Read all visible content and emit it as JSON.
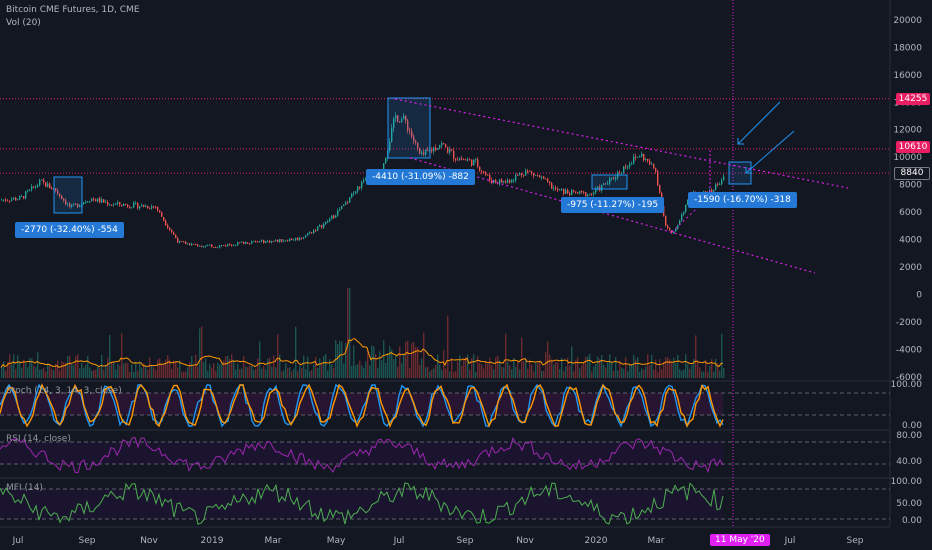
{
  "header": {
    "title": "Bitcoin CME Futures, 1D, CME",
    "volume_label": "Vol (20)"
  },
  "indicators": {
    "stoch": "Stoch (14, 3, 14, 3, close)",
    "rsi": "RSI (14, close)",
    "mfi": "MFI (14)"
  },
  "annotations": [
    {
      "id": "a1",
      "text": "-2770 (-32.40%) -554"
    },
    {
      "id": "a2",
      "text": "-4410 (-31.09%) -882"
    },
    {
      "id": "a3",
      "text": "-975 (-11.27%) -195"
    },
    {
      "id": "a4",
      "text": "-1590 (-16.70%) -318"
    }
  ],
  "price_axis": {
    "ticks": [
      "20000",
      "18000",
      "16000",
      "14000",
      "12000",
      "10000",
      "8000",
      "6000",
      "4000",
      "2000",
      "0",
      "-2000",
      "-4000",
      "-6000"
    ]
  },
  "price_badges": [
    {
      "value": "14255",
      "color": "#e91e63"
    },
    {
      "value": "10610",
      "color": "#e91e63"
    },
    {
      "value": "8840",
      "color": "#131722"
    }
  ],
  "stoch_axis": [
    "100.00",
    "0.00"
  ],
  "rsi_axis": [
    "80.00",
    "40.00"
  ],
  "mfi_axis": [
    "100.00",
    "50.00",
    "0.00"
  ],
  "time_axis": [
    "Jul",
    "Sep",
    "Nov",
    "2019",
    "Mar",
    "May",
    "Jul",
    "Sep",
    "Nov",
    "2020",
    "Mar",
    "May",
    "Jul",
    "Sep"
  ],
  "cursor_date": "11 May '20",
  "colors": {
    "background": "#131722",
    "up": "#26a69a",
    "down": "#ef5350",
    "channel": "#e01ff0",
    "stoch_k": "#2196f3",
    "stoch_d": "#ff9800",
    "rsi": "#9c27b0",
    "mfi": "#4caf50"
  }
}
